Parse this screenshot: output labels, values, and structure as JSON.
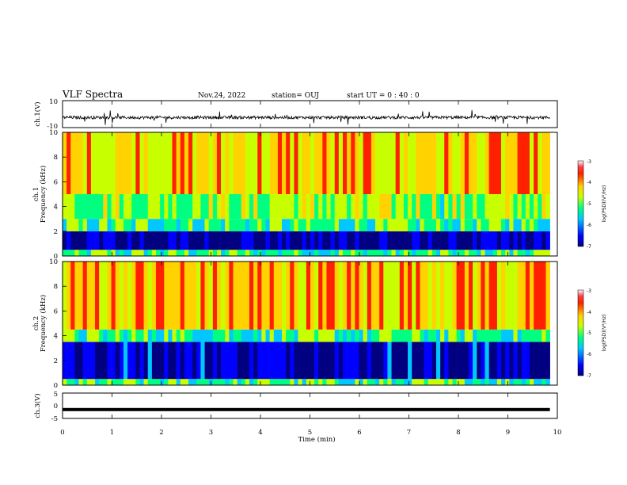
{
  "header": {
    "title": "VLF Spectra",
    "date": "Nov.24, 2022",
    "station": "station= OUJ",
    "start": "start  UT =   0 : 40 : 0"
  },
  "chart_data": [
    {
      "type": "line",
      "panel": "ch1-waveform",
      "ylabel": "ch.1(V)",
      "ylim": [
        -10,
        10
      ],
      "yticks": [
        "10",
        "-10"
      ],
      "x_range_min": [
        0,
        9.85
      ],
      "baseline": -2.5
    },
    {
      "type": "heatmap",
      "panel": "ch1-spectrogram",
      "ylabel_top": "ch.1",
      "ylabel": "Frequency (kHz)",
      "ylim": [
        0,
        10
      ],
      "yticks": [
        "0",
        "2",
        "4",
        "6",
        "8",
        "10"
      ],
      "colorbar": {
        "label": "log(PSD)(V²/Hz)",
        "range": [
          -7,
          -3
        ],
        "ticks": [
          "-3",
          "-4",
          "-5",
          "-6",
          "-7"
        ]
      },
      "bands": [
        {
          "from": 0,
          "to": 0.5,
          "level": -5.0
        },
        {
          "from": 0.5,
          "to": 2,
          "level": -6.6
        },
        {
          "from": 2,
          "to": 3,
          "level": -5.0
        },
        {
          "from": 3,
          "to": 5,
          "level": -4.6
        },
        {
          "from": 5,
          "to": 10,
          "level": -4.0
        }
      ]
    },
    {
      "type": "heatmap",
      "panel": "ch2-spectrogram",
      "ylabel_top": "ch.2",
      "ylabel": "Frequency (kHz)",
      "ylim": [
        0,
        10
      ],
      "yticks": [
        "0",
        "2",
        "4",
        "6",
        "8",
        "10"
      ],
      "colorbar": {
        "label": "log(PSD)(V²/Hz)",
        "range": [
          -7,
          -3
        ],
        "ticks": [
          "-3",
          "-4",
          "-5",
          "-6",
          "-7"
        ]
      },
      "bands": [
        {
          "from": 0,
          "to": 0.5,
          "level": -5.0
        },
        {
          "from": 0.5,
          "to": 3.5,
          "level": -6.4
        },
        {
          "from": 3.5,
          "to": 4.5,
          "level": -5.0
        },
        {
          "from": 4.5,
          "to": 10,
          "level": -3.8
        }
      ]
    },
    {
      "type": "line",
      "panel": "ch3-waveform",
      "ylabel": "ch.3(V)",
      "ylim": [
        -5,
        5
      ],
      "yticks": [
        "5",
        "0",
        "-5"
      ],
      "x_range_min": [
        0,
        9.85
      ],
      "constant": -1.5
    }
  ],
  "xaxis": {
    "label": "Time (min)",
    "ticks": [
      "0",
      "1",
      "2",
      "3",
      "4",
      "5",
      "6",
      "7",
      "8",
      "9",
      "10"
    ],
    "xlim": [
      0,
      10
    ]
  },
  "colors": {
    "colormap": [
      "#000080",
      "#0000ff",
      "#00c8ff",
      "#00ff80",
      "#c8ff00",
      "#ffd200",
      "#ff2000",
      "#ffffff"
    ]
  }
}
